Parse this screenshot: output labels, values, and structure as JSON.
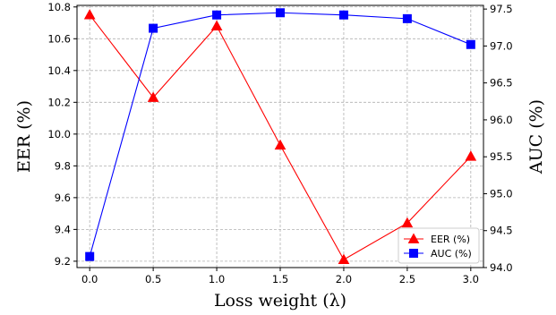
{
  "chart_data": {
    "type": "line",
    "x": [
      0.0,
      0.5,
      1.0,
      1.5,
      2.0,
      2.5,
      3.0
    ],
    "x_tick_labels": [
      "0.0",
      "0.5",
      "1.0",
      "1.5",
      "2.0",
      "2.5",
      "3.0"
    ],
    "xlabel": "Loss weight (λ)",
    "xlim": [
      -0.1,
      3.1
    ],
    "y_left": {
      "label": "EER (%)",
      "ylim": [
        9.16,
        10.81
      ],
      "ticks": [
        9.2,
        9.4,
        9.6,
        9.8,
        10.0,
        10.2,
        10.4,
        10.6,
        10.8
      ],
      "tick_labels": [
        "9.2",
        "9.4",
        "9.6",
        "9.8",
        "10.0",
        "10.2",
        "10.4",
        "10.6",
        "10.8"
      ]
    },
    "y_right": {
      "label": "AUC (%)",
      "ylim": [
        94.0,
        97.55
      ],
      "ticks": [
        94.0,
        94.5,
        95.0,
        95.5,
        96.0,
        96.5,
        97.0,
        97.5
      ],
      "tick_labels": [
        "94.0",
        "94.5",
        "95.0",
        "95.5",
        "96.0",
        "96.5",
        "97.0",
        "97.5"
      ]
    },
    "series": [
      {
        "name": "EER (%)",
        "axis": "left",
        "color": "#ff0000",
        "marker": "triangle",
        "values": [
          10.75,
          10.23,
          10.68,
          9.93,
          9.21,
          9.44,
          9.86
        ]
      },
      {
        "name": "AUC (%)",
        "axis": "right",
        "color": "#0000ff",
        "marker": "square",
        "values": [
          94.15,
          97.24,
          97.42,
          97.45,
          97.42,
          97.37,
          97.02
        ]
      }
    ],
    "grid": true,
    "legend_position": "bottom-right"
  }
}
